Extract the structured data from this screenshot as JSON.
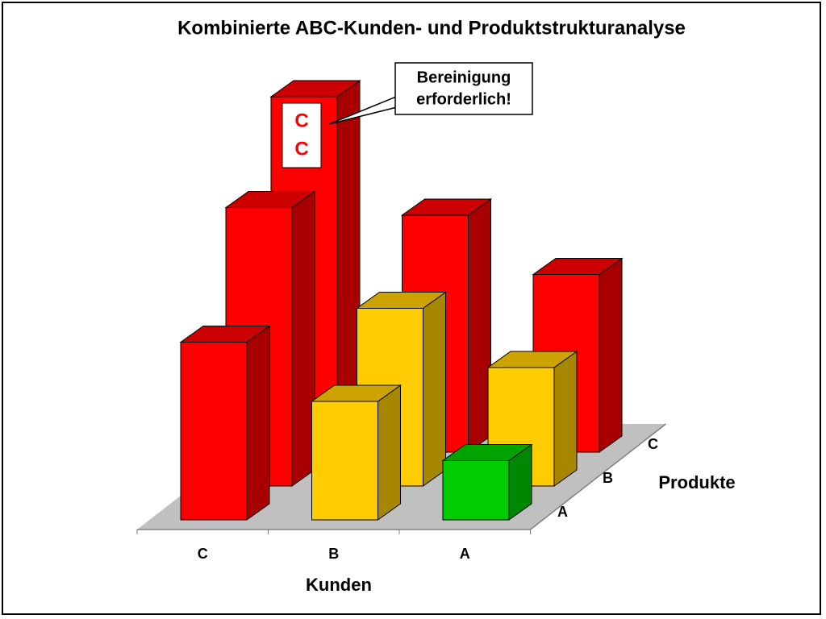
{
  "chart_data": {
    "type": "bar3d",
    "title": "Kombinierte ABC-Kunden- und Produktstrukturanalyse",
    "x_label": "Kunden",
    "z_label": "Produkte",
    "categories": [
      "C",
      "B",
      "A"
    ],
    "series": [
      {
        "name": "A",
        "values": [
          3,
          2,
          1
        ],
        "colors": [
          "#ff0000",
          "#ffcc00",
          "#00cc00"
        ]
      },
      {
        "name": "B",
        "values": [
          4.7,
          3,
          2
        ],
        "colors": [
          "#ff0000",
          "#ffcc00",
          "#ffcc00"
        ]
      },
      {
        "name": "C",
        "values": [
          6,
          4,
          3
        ],
        "colors": [
          "#ff0000",
          "#ff0000",
          "#ff0000"
        ]
      }
    ],
    "annotations": {
      "callout": [
        "Bereinigung",
        "erforderlich!"
      ],
      "bar_label": [
        "C",
        "C"
      ]
    }
  }
}
